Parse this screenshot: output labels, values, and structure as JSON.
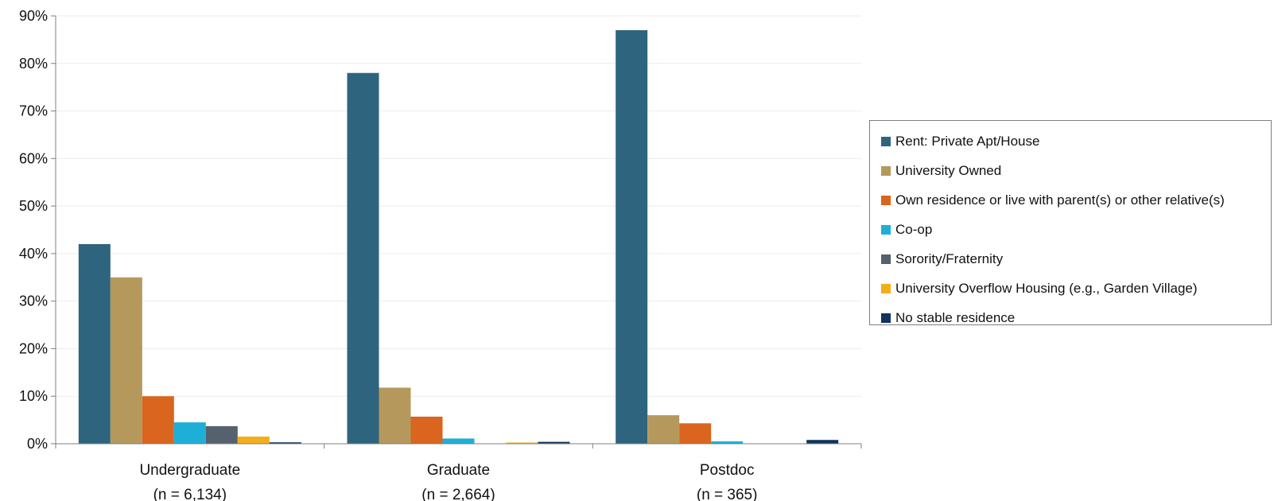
{
  "chart_data": {
    "type": "bar",
    "categories": [
      "Undergraduate",
      "Graduate",
      "Postdoc"
    ],
    "category_sublabels": [
      "(n = 6,134)",
      "(n = 2,664)",
      "(n = 365)"
    ],
    "series": [
      {
        "name": "Rent: Private Apt/House",
        "color": "#2e647e",
        "values": [
          42,
          78,
          87
        ]
      },
      {
        "name": "University Owned",
        "color": "#b5995c",
        "values": [
          35,
          11.8,
          6
        ]
      },
      {
        "name": "Own residence or live with parent(s) or other relative(s)",
        "color": "#d9651f",
        "values": [
          10,
          5.7,
          4.3
        ]
      },
      {
        "name": "Co-op",
        "color": "#1eafd8",
        "values": [
          4.5,
          1.1,
          0.5
        ]
      },
      {
        "name": "Sorority/Fraternity",
        "color": "#55616c",
        "values": [
          3.7,
          0,
          0
        ]
      },
      {
        "name": "University Overflow Housing (e.g., Garden Village)",
        "color": "#f3ae19",
        "values": [
          1.5,
          0.2,
          0
        ]
      },
      {
        "name": "No stable residence",
        "color": "#11335d",
        "values": [
          0.3,
          0.4,
          0.8
        ]
      }
    ],
    "ylim": [
      0,
      90
    ],
    "yticks": [
      0,
      10,
      20,
      30,
      40,
      50,
      60,
      70,
      80,
      90
    ],
    "ytick_labels": [
      "0%",
      "10%",
      "20%",
      "30%",
      "40%",
      "50%",
      "60%",
      "70%",
      "80%",
      "90%"
    ],
    "grid": true,
    "legend_position": "right",
    "title": "",
    "xlabel": "",
    "ylabel": ""
  }
}
